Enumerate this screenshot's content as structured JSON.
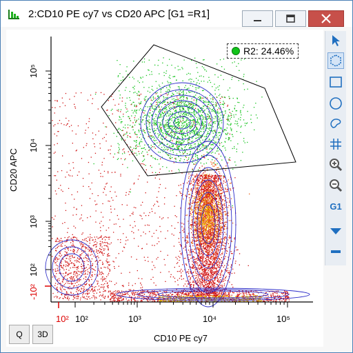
{
  "window": {
    "title": "2:CD10 PE cy7 vs CD20 APC [G1 =R1]",
    "minimize_icon": "minimize-icon",
    "maximize_icon": "maximize-icon",
    "close_icon": "close-icon"
  },
  "plot": {
    "xlabel": "CD10 PE cy7",
    "ylabel": "CD20 APC",
    "x_ticks": [
      "10²",
      "10²",
      "10³",
      "10⁴",
      "10⁵"
    ],
    "y_ticks": [
      "10⁵",
      "10⁴",
      "10³",
      "10²",
      "-10²"
    ],
    "gate_label": "R2: 24.46%",
    "gate_color": "#11c31a"
  },
  "toolbar": {
    "items": [
      {
        "icon": "pointer-arrow-icon"
      },
      {
        "icon": "polygon-gate-icon"
      },
      {
        "icon": "rectangle-gate-icon"
      },
      {
        "icon": "ellipse-gate-icon"
      },
      {
        "icon": "freehand-gate-icon"
      },
      {
        "icon": "quadrant-gate-icon"
      },
      {
        "icon": "zoom-in-icon"
      },
      {
        "icon": "zoom-out-icon"
      },
      {
        "label": "G1"
      },
      {
        "icon": "dropdown-triangle-icon"
      },
      {
        "icon": "minus-icon"
      }
    ]
  },
  "bottom_buttons": {
    "q_label": "Q",
    "threed_label": "3D"
  },
  "colors": {
    "accent": "#1f6fc0",
    "title_close": "#c7504a",
    "dots_red": "#d01010",
    "dots_green": "#11c31a",
    "contour_blue": "#2a2ac8"
  }
}
